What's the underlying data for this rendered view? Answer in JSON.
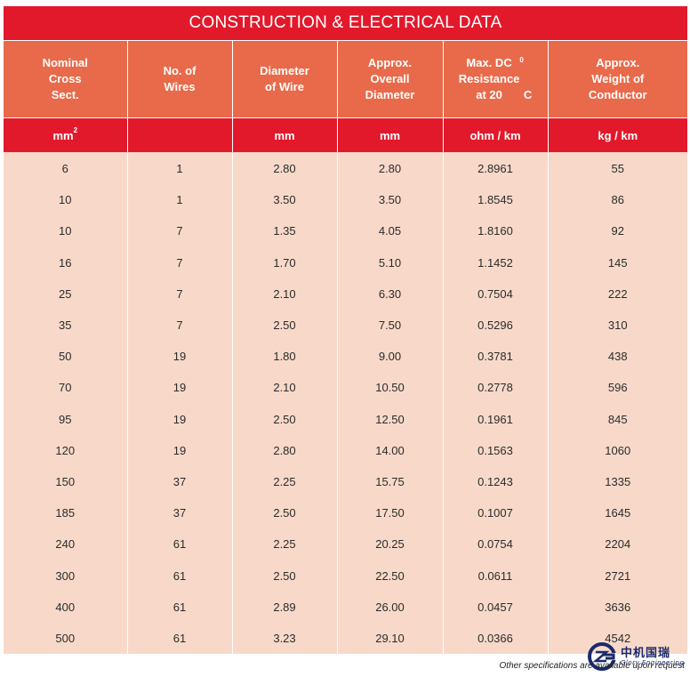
{
  "title": "CONSTRUCTION & ELECTRICAL DATA",
  "columns": [
    {
      "header": "Nominal\nCross\nSect.",
      "unit": "mm",
      "unit_sup": "2"
    },
    {
      "header": "No. of\nWires",
      "unit": "",
      "unit_sup": ""
    },
    {
      "header": "Diameter\nof Wire",
      "unit": "mm",
      "unit_sup": ""
    },
    {
      "header": "Approx.\nOverall\nDiameter",
      "unit": "mm",
      "unit_sup": ""
    },
    {
      "header": "Max. DC\nResistance\nat 20",
      "header_sup": "0",
      "header_tail": "C",
      "unit": "ohm / km",
      "unit_sup": ""
    },
    {
      "header": "Approx.\nWeight of\nConductor",
      "unit": "kg / km",
      "unit_sup": ""
    }
  ],
  "rows": [
    [
      "6",
      "1",
      "2.80",
      "2.80",
      "2.8961",
      "55"
    ],
    [
      "10",
      "1",
      "3.50",
      "3.50",
      "1.8545",
      "86"
    ],
    [
      "10",
      "7",
      "1.35",
      "4.05",
      "1.8160",
      "92"
    ],
    [
      "16",
      "7",
      "1.70",
      "5.10",
      "1.1452",
      "145"
    ],
    [
      "25",
      "7",
      "2.10",
      "6.30",
      "0.7504",
      "222"
    ],
    [
      "35",
      "7",
      "2.50",
      "7.50",
      "0.5296",
      "310"
    ],
    [
      "50",
      "19",
      "1.80",
      "9.00",
      "0.3781",
      "438"
    ],
    [
      "70",
      "19",
      "2.10",
      "10.50",
      "0.2778",
      "596"
    ],
    [
      "95",
      "19",
      "2.50",
      "12.50",
      "0.1961",
      "845"
    ],
    [
      "120",
      "19",
      "2.80",
      "14.00",
      "0.1563",
      "1060"
    ],
    [
      "150",
      "37",
      "2.25",
      "15.75",
      "0.1243",
      "1335"
    ],
    [
      "185",
      "37",
      "2.50",
      "17.50",
      "0.1007",
      "1645"
    ],
    [
      "240",
      "61",
      "2.25",
      "20.25",
      "0.0754",
      "2204"
    ],
    [
      "300",
      "61",
      "2.50",
      "22.50",
      "0.0611",
      "2721"
    ],
    [
      "400",
      "61",
      "2.89",
      "26.00",
      "0.0457",
      "3636"
    ],
    [
      "500",
      "61",
      "3.23",
      "29.10",
      "0.0366",
      "4542"
    ]
  ],
  "footnote": "Other specifications are available upon request",
  "logo": {
    "icon": "glory-engineering-logo-icon",
    "name_cn": "中机国瑞",
    "name_en": "Glory Engineering"
  },
  "colors": {
    "title_bg": "#e2192b",
    "header_bg": "#e86a4a",
    "unit_bg": "#e2192b",
    "body_bg": "#f8d9c9",
    "logo": "#1a2a6c"
  }
}
